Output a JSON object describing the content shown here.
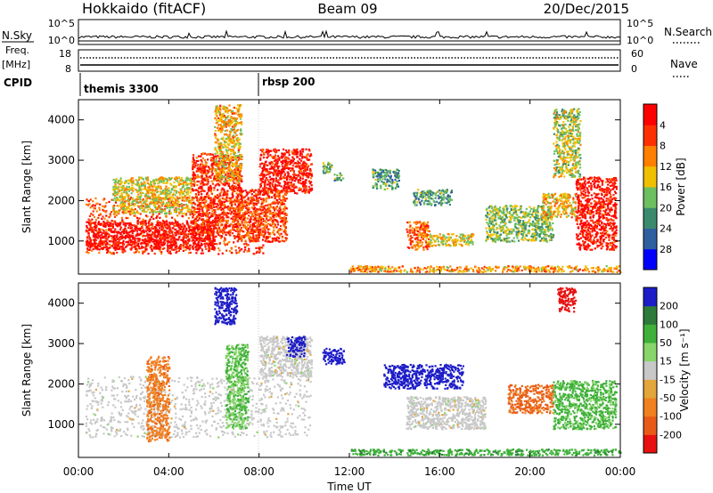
{
  "header": {
    "station": "Hokkaido (fitACF)",
    "beam": "Beam 09",
    "date": "20/Dec/2015"
  },
  "top_panels": {
    "nsky_label": "N.Sky",
    "nsky_ticks": [
      "10^5",
      "10^0"
    ],
    "nsearch_label": "N.Search",
    "nsearch_ticks": [
      "10^5",
      "10^0"
    ],
    "freq_label_1": "Freq.",
    "freq_label_2": "[MHz]",
    "freq_ticks": [
      "18",
      "8"
    ],
    "nave_label": "Nave",
    "nave_ticks": [
      "60",
      "0"
    ],
    "cpid_label": "CPID",
    "cpid_modes": [
      {
        "label": "themis 3300",
        "start_hour": 0
      },
      {
        "label": "rbsp 200",
        "start_hour": 8
      }
    ]
  },
  "time_axis": {
    "title": "Time UT",
    "ticks": [
      "00:00",
      "04:00",
      "08:00",
      "12:00",
      "16:00",
      "20:00",
      "00:00"
    ],
    "range_hours": [
      0,
      24
    ]
  },
  "colors": {
    "power": [
      "#0000ff",
      "#2e5fa0",
      "#3c8a6e",
      "#6cc060",
      "#f0c000",
      "#ff7f00",
      "#ff3000",
      "#ff0000"
    ],
    "velocity_pos": [
      "#1c1cc8",
      "#2d7a3a",
      "#3fb03a",
      "#88d66a"
    ],
    "velocity_neg": [
      "#e2a63a",
      "#f08020",
      "#e85a18",
      "#e81010"
    ],
    "ground_scatter": "#c8c8c8"
  },
  "chart_data": [
    {
      "type": "heatmap",
      "title": "",
      "ylabel": "Slant Range [km]",
      "xlabel": "",
      "ylim": [
        180,
        4500
      ],
      "yticks": [
        1000,
        2000,
        3000,
        4000
      ],
      "colorbar": {
        "label": "Power [dB]",
        "range": [
          0,
          32
        ],
        "ticks": [
          "4",
          "8",
          "12",
          "16",
          "20",
          "24",
          "28"
        ]
      },
      "regions": [
        {
          "t": [
            0.3,
            8.3
          ],
          "r": [
            700,
            2100
          ],
          "level": 0.8
        },
        {
          "t": [
            0.3,
            6.0
          ],
          "r": [
            800,
            1500
          ],
          "level": 0.95
        },
        {
          "t": [
            1.5,
            5.0
          ],
          "r": [
            1700,
            2600
          ],
          "level": 0.55
        },
        {
          "t": [
            5.0,
            7.2
          ],
          "r": [
            1200,
            3200
          ],
          "level": 0.85
        },
        {
          "t": [
            6.0,
            7.2
          ],
          "r": [
            2500,
            4400
          ],
          "level": 0.6
        },
        {
          "t": [
            7.0,
            9.2
          ],
          "r": [
            1000,
            2300
          ],
          "level": 0.8
        },
        {
          "t": [
            8.0,
            10.3
          ],
          "r": [
            2200,
            3300
          ],
          "level": 0.9
        },
        {
          "t": [
            10.8,
            11.2
          ],
          "r": [
            2700,
            3000
          ],
          "level": 0.45
        },
        {
          "t": [
            11.3,
            11.7
          ],
          "r": [
            2500,
            2700
          ],
          "level": 0.4
        },
        {
          "t": [
            13.0,
            14.2
          ],
          "r": [
            2300,
            2800
          ],
          "level": 0.35
        },
        {
          "t": [
            14.5,
            15.5
          ],
          "r": [
            800,
            1500
          ],
          "level": 0.75
        },
        {
          "t": [
            14.8,
            16.5
          ],
          "r": [
            1900,
            2300
          ],
          "level": 0.35
        },
        {
          "t": [
            15.5,
            17.5
          ],
          "r": [
            900,
            1200
          ],
          "level": 0.55
        },
        {
          "t": [
            18.0,
            21.0
          ],
          "r": [
            1000,
            1900
          ],
          "level": 0.45
        },
        {
          "t": [
            20.5,
            22.0
          ],
          "r": [
            1600,
            2200
          ],
          "level": 0.6
        },
        {
          "t": [
            22.0,
            23.8
          ],
          "r": [
            800,
            2600
          ],
          "level": 0.9
        },
        {
          "t": [
            21.0,
            22.2
          ],
          "r": [
            2600,
            4300
          ],
          "level": 0.5
        },
        {
          "t": [
            12.0,
            24.0
          ],
          "r": [
            250,
            400
          ],
          "level": 0.65
        }
      ]
    },
    {
      "type": "heatmap",
      "title": "",
      "ylabel": "Slant Range [km]",
      "xlabel": "Time UT",
      "ylim": [
        180,
        4500
      ],
      "yticks": [
        1000,
        2000,
        3000,
        4000
      ],
      "colorbar": {
        "label": "Velocity [m s⁻¹]",
        "range": [
          -250,
          250
        ],
        "ticks": [
          "200",
          "100",
          "50",
          "15",
          "-15",
          "-50",
          "-100",
          "-200"
        ]
      },
      "regions": [
        {
          "t": [
            0.3,
            10.3
          ],
          "r": [
            700,
            2200
          ],
          "v": 0
        },
        {
          "t": [
            8.0,
            10.3
          ],
          "r": [
            2200,
            3200
          ],
          "v": 0
        },
        {
          "t": [
            3.0,
            4.0
          ],
          "r": [
            600,
            2700
          ],
          "v": -60
        },
        {
          "t": [
            6.5,
            7.5
          ],
          "r": [
            900,
            3000
          ],
          "v": 30
        },
        {
          "t": [
            6.0,
            7.0
          ],
          "r": [
            3500,
            4400
          ],
          "v": 220
        },
        {
          "t": [
            9.2,
            10.0
          ],
          "r": [
            2700,
            3200
          ],
          "v": 220
        },
        {
          "t": [
            10.8,
            11.8
          ],
          "r": [
            2500,
            2900
          ],
          "v": 220
        },
        {
          "t": [
            13.5,
            17.0
          ],
          "r": [
            1900,
            2500
          ],
          "v": 200
        },
        {
          "t": [
            14.5,
            18.0
          ],
          "r": [
            900,
            1700
          ],
          "v": 0
        },
        {
          "t": [
            19.0,
            21.0
          ],
          "r": [
            1300,
            2000
          ],
          "v": -80
        },
        {
          "t": [
            21.0,
            23.8
          ],
          "r": [
            900,
            2100
          ],
          "v": 40
        },
        {
          "t": [
            21.2,
            22.0
          ],
          "r": [
            3800,
            4400
          ],
          "v": -200
        },
        {
          "t": [
            12.0,
            24.0
          ],
          "r": [
            250,
            400
          ],
          "v": 60
        }
      ]
    }
  ]
}
